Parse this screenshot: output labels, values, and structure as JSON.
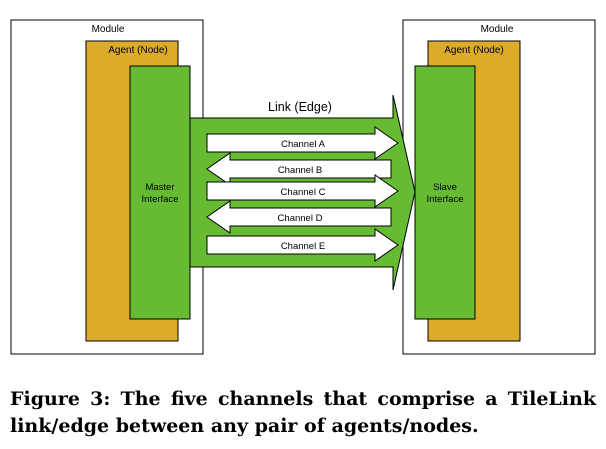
{
  "left_node": {
    "module_label": "Module",
    "agent_label": "Agent (Node)",
    "interface_label": [
      "Master",
      "Interface"
    ]
  },
  "right_node": {
    "module_label": "Module",
    "agent_label": "Agent (Node)",
    "interface_label": [
      "Slave",
      "Interface"
    ]
  },
  "link": {
    "label": "Link (Edge)"
  },
  "channels": [
    {
      "label": "Channel A",
      "direction": "right"
    },
    {
      "label": "Channel B",
      "direction": "left"
    },
    {
      "label": "Channel C",
      "direction": "right"
    },
    {
      "label": "Channel D",
      "direction": "left"
    },
    {
      "label": "Channel E",
      "direction": "right"
    }
  ],
  "colors": {
    "agent": "#dcab2a",
    "interface": "#66bb33",
    "link": "#66bb33",
    "module": "#ffffff",
    "channel": "#ffffff"
  },
  "caption": {
    "prefix": "Figure 3:",
    "text": "The five channels that comprise a TileLink link/edge between any pair of agents/nodes."
  }
}
